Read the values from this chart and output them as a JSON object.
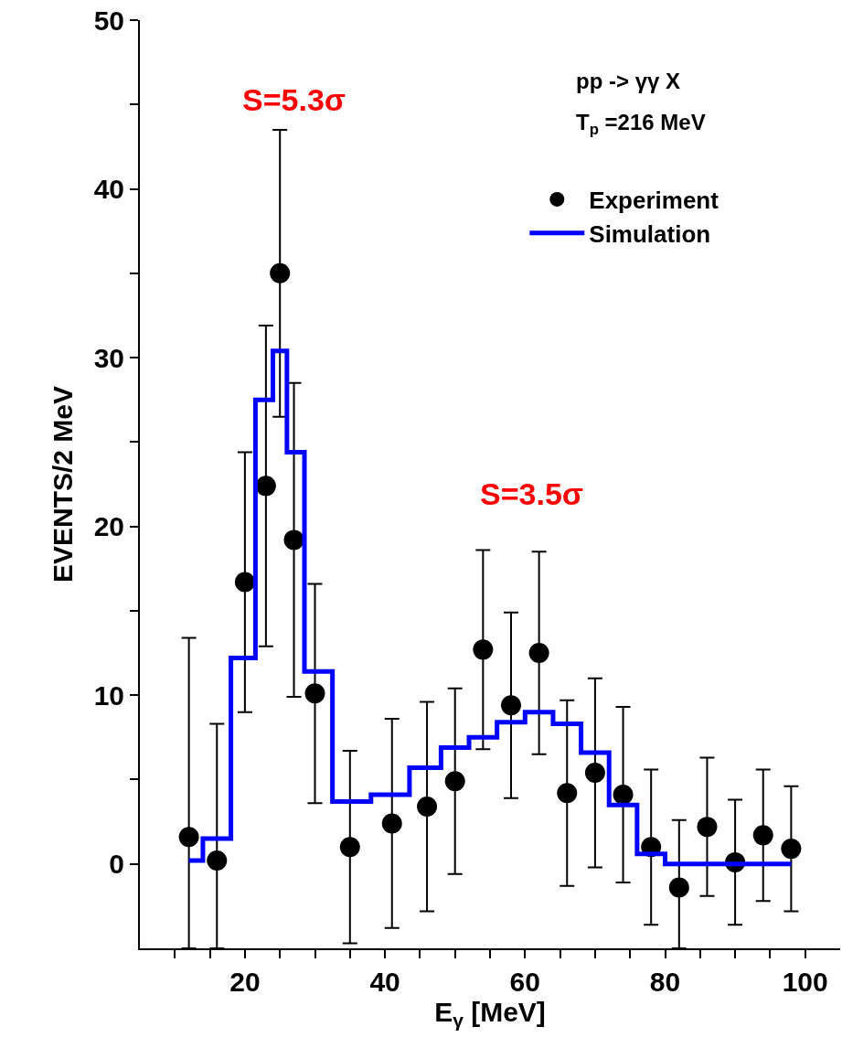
{
  "chart_data": {
    "type": "scatter",
    "xlabel": "E$_{γ}$ [MeV]",
    "ylabel": "EVENTS/2 MeV",
    "xlim": [
      5,
      105
    ],
    "ylim": [
      -5,
      50
    ],
    "xticks": [
      {
        "value": 10,
        "label": null
      },
      {
        "value": 15,
        "label": null
      },
      20,
      {
        "value": 25,
        "label": null
      },
      {
        "value": 30,
        "label": null
      },
      {
        "value": 35,
        "label": null
      },
      40,
      {
        "value": 45,
        "label": null
      },
      {
        "value": 50,
        "label": null
      },
      {
        "value": 55,
        "label": null
      },
      60,
      {
        "value": 65,
        "label": null
      },
      {
        "value": 70,
        "label": null
      },
      {
        "value": 75,
        "label": null
      },
      80,
      {
        "value": 85,
        "label": null
      },
      {
        "value": 90,
        "label": null
      },
      {
        "value": 95,
        "label": null
      },
      100
    ],
    "yticks": [
      0,
      {
        "value": 5,
        "label": null
      },
      10,
      {
        "value": 15,
        "label": null
      },
      20,
      {
        "value": 25,
        "label": null
      },
      30,
      {
        "value": 35,
        "label": null
      },
      40,
      {
        "value": 45,
        "label": null
      },
      50
    ],
    "legend": "top right",
    "series": [
      {
        "name": "Experiment",
        "color": "#000000",
        "marker": "circle",
        "x": [
          12,
          16,
          20,
          23,
          25,
          27,
          30,
          35,
          41,
          46,
          50,
          54,
          58,
          62,
          66,
          70,
          74,
          78,
          82,
          86,
          90,
          94,
          98
        ],
        "values": [
          1.6,
          0.2,
          16.7,
          22.4,
          35.0,
          19.2,
          10.1,
          1.0,
          2.4,
          3.4,
          4.9,
          12.7,
          9.4,
          12.5,
          4.2,
          5.4,
          4.1,
          1.0,
          -1.4,
          2.2,
          0.1,
          1.7,
          0.9
        ],
        "errors": [
          [
            -5,
            13.4
          ],
          [
            -5,
            8.3
          ],
          7.7,
          9.5,
          8.5,
          9.3,
          6.5,
          5.7,
          6.2,
          6.2,
          5.5,
          5.9,
          5.5,
          6.0,
          5.5,
          5.6,
          5.2,
          4.6,
          [
            -5,
            2.6
          ],
          4.1,
          3.7,
          3.9,
          3.7
        ]
      },
      {
        "name": "Simulation",
        "type": "step",
        "color": "#0000ff",
        "line_style": "solid",
        "x": [
          12,
          14,
          18,
          21.5,
          24,
          26,
          28.5,
          32.5,
          38,
          43.5,
          48,
          52,
          56,
          60,
          64,
          68,
          72,
          76,
          80,
          98
        ],
        "values": [
          0.2,
          1.5,
          12.2,
          27.5,
          30.4,
          24.4,
          11.4,
          3.7,
          4.1,
          5.7,
          6.9,
          7.5,
          8.4,
          9.0,
          8.3,
          6.6,
          3.5,
          0.6,
          0.0,
          0.0
        ]
      }
    ],
    "annotations": [
      "S=5.3σ",
      "S=3.5σ",
      "pp -> γγ X",
      "T$_{p}$ =216 MeV"
    ]
  }
}
